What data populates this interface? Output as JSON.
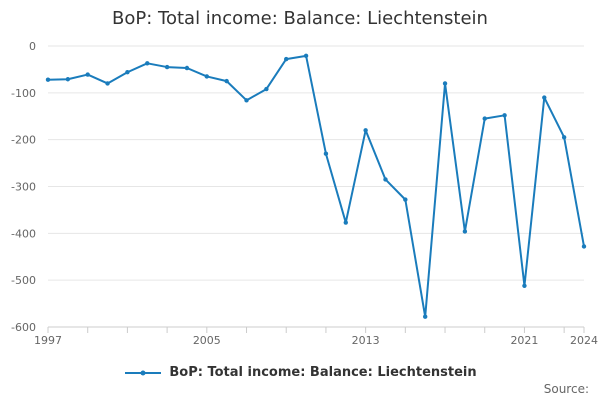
{
  "title": "BoP: Total income: Balance: Liechtenstein",
  "source_label": "Source:",
  "colors": {
    "series": "#1a7cbc",
    "grid": "#e6e6e6",
    "axis": "#cccccc",
    "text": "#666666"
  },
  "chart_data": {
    "type": "line",
    "title": "BoP: Total income: Balance: Liechtenstein",
    "xlabel": "",
    "ylabel": "",
    "xlim": [
      1997,
      2024
    ],
    "ylim": [
      -600,
      0
    ],
    "grid": true,
    "legend_position": "bottom",
    "x_ticks": [
      1997,
      2005,
      2013,
      2021,
      2024
    ],
    "y_ticks": [
      0,
      -100,
      -200,
      -300,
      -400,
      -500,
      -600
    ],
    "series": [
      {
        "name": "BoP: Total income: Balance: Liechtenstein",
        "x": [
          1997,
          1998,
          1999,
          2000,
          2001,
          2002,
          2003,
          2004,
          2005,
          2006,
          2007,
          2008,
          2009,
          2010,
          2011,
          2012,
          2013,
          2014,
          2015,
          2016,
          2017,
          2018,
          2019,
          2020,
          2021,
          2022,
          2023,
          2024
        ],
        "values": [
          -72,
          -71,
          -61,
          -80,
          -56,
          -37,
          -45,
          -47,
          -65,
          -75,
          -116,
          -92,
          -28,
          -21,
          -230,
          -377,
          -180,
          -285,
          -328,
          -578,
          -80,
          -396,
          -155,
          -148,
          -512,
          -110,
          -195,
          -428
        ]
      }
    ]
  }
}
